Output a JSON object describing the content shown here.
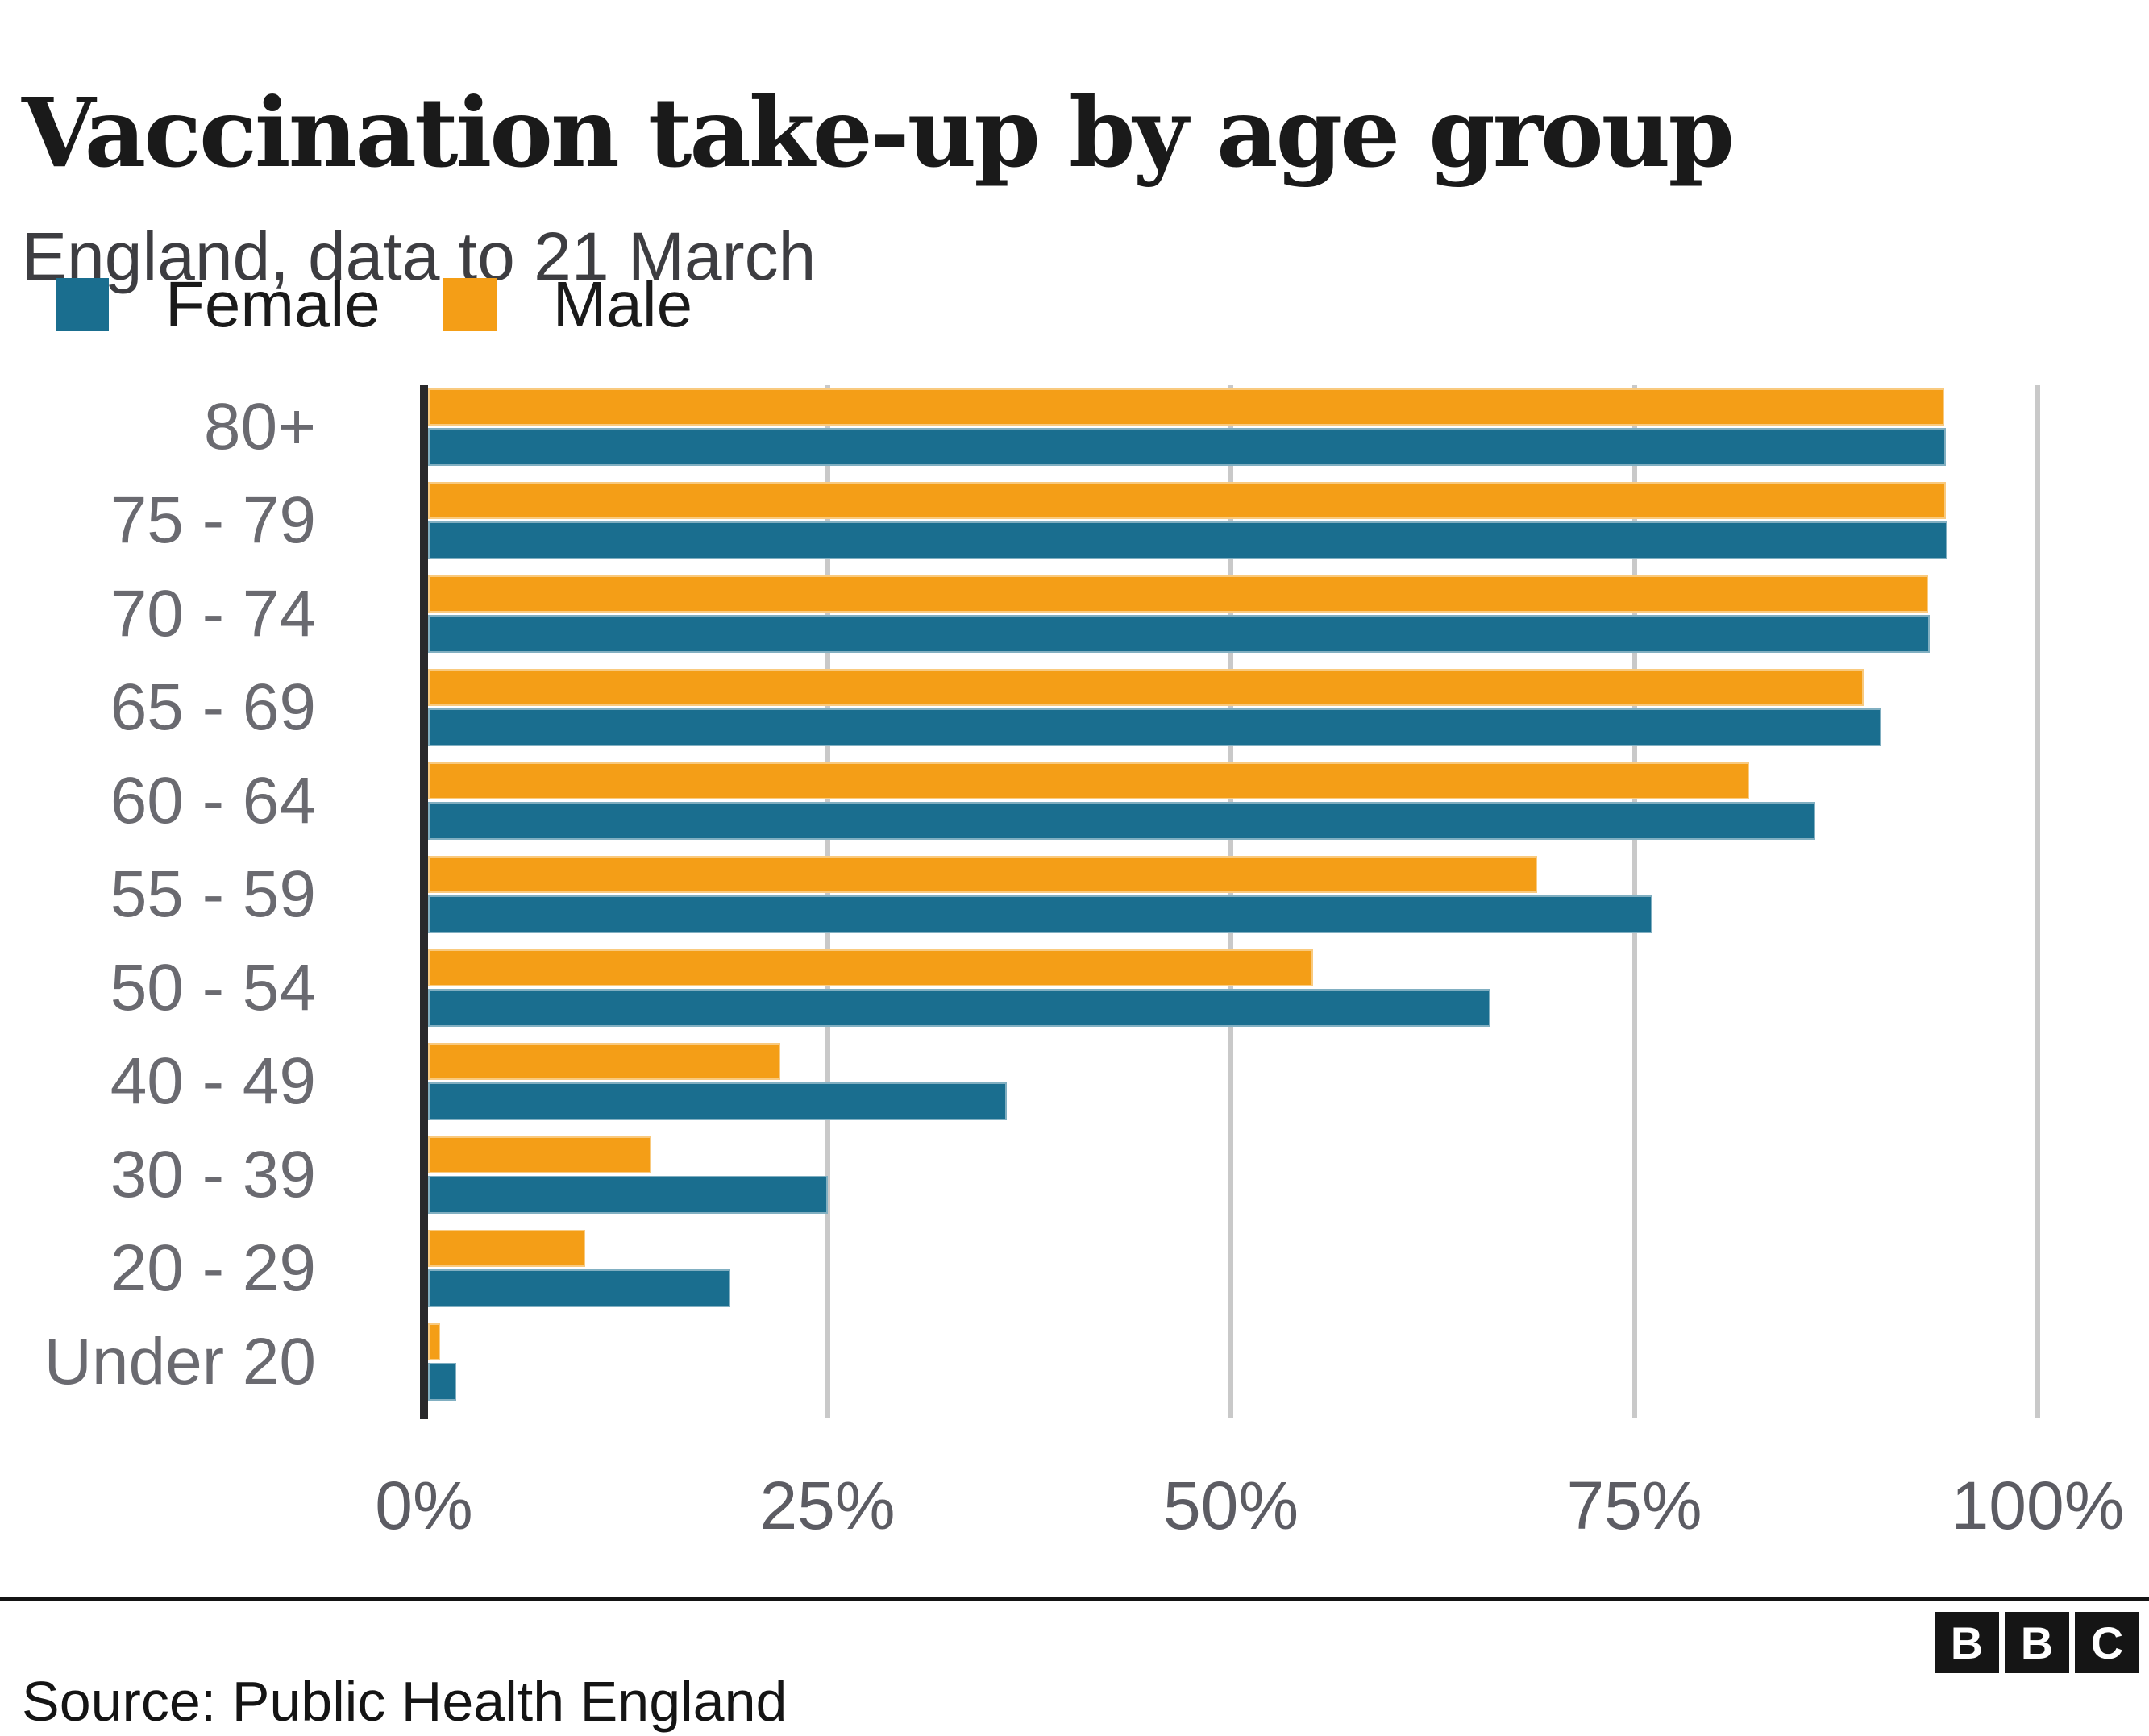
{
  "header": {
    "title": "Vaccination take-up by age group",
    "subtitle": "England, data to 21 March"
  },
  "legend": {
    "items": [
      {
        "label": "Female",
        "color": "#1A6E8F"
      },
      {
        "label": "Male",
        "color": "#F49E17"
      }
    ]
  },
  "chart_data": {
    "type": "bar",
    "orientation": "horizontal",
    "title": "Vaccination take-up by age group",
    "subtitle": "England, data to 21 March",
    "categories": [
      "80+",
      "75 - 79",
      "70 - 74",
      "65 - 69",
      "60 - 64",
      "55 - 59",
      "50 - 54",
      "40 - 49",
      "30 - 39",
      "20 - 29",
      "Under 20"
    ],
    "series": [
      {
        "name": "Female",
        "color": "#1A6E8F",
        "values": [
          94.3,
          94.4,
          93.3,
          90.3,
          86.2,
          76.1,
          66.1,
          36.1,
          25.0,
          19.0,
          2.0
        ]
      },
      {
        "name": "Male",
        "color": "#F49E17",
        "values": [
          94.2,
          94.3,
          93.2,
          89.2,
          82.1,
          69.0,
          55.1,
          22.1,
          14.1,
          10.0,
          1.0
        ]
      }
    ],
    "bar_order_note": "Male bar drawn above Female bar within each age group",
    "x_ticks": [
      "0%",
      "25%",
      "50%",
      "75%",
      "100%"
    ],
    "x_tick_values": [
      0,
      25,
      50,
      75,
      100
    ],
    "xlim": [
      0,
      100
    ],
    "grid": "vertical",
    "legend_position": "top-left"
  },
  "footer": {
    "source": "Source: Public Health England",
    "logo": [
      "B",
      "B",
      "C"
    ]
  }
}
